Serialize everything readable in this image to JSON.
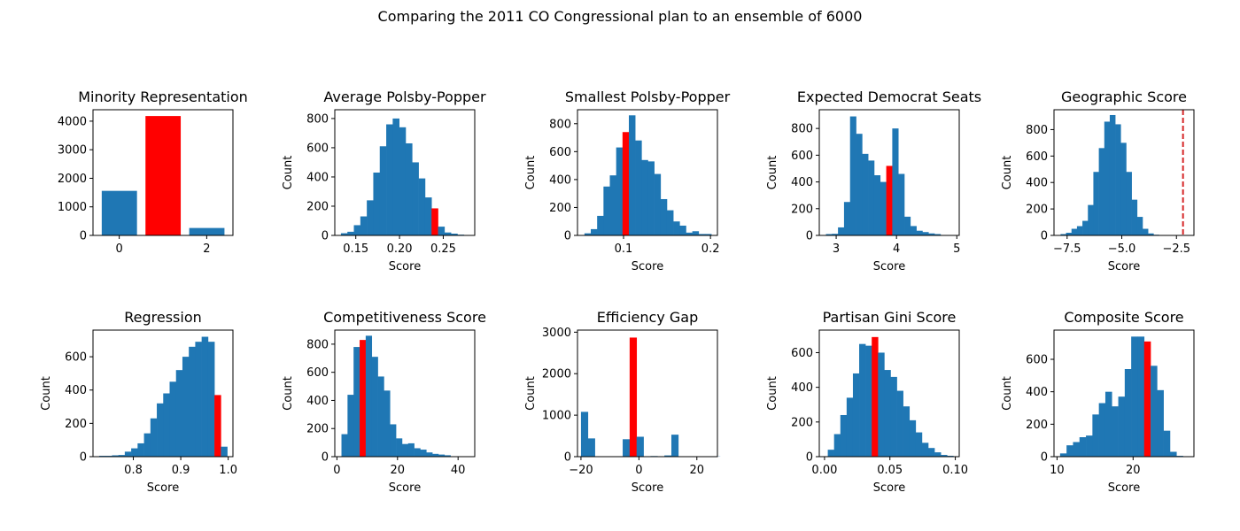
{
  "figure": {
    "title": "Comparing the 2011 CO Congressional plan to an ensemble of 6000"
  },
  "colors": {
    "ensemble": "#1f77b4",
    "plan": "#ff0000",
    "geo_line": "#d62728"
  },
  "chart_data": [
    {
      "type": "bar",
      "title": "Minority Representation",
      "xlabel": "",
      "ylabel": "",
      "xlim": [
        -0.6,
        2.6
      ],
      "ylim": [
        0,
        4400
      ],
      "xticks": [
        0,
        2
      ],
      "xtick_labels": [
        "0",
        "2"
      ],
      "yticks": [
        0,
        1000,
        2000,
        3000,
        4000
      ],
      "ytick_labels": [
        "0",
        "1000",
        "2000",
        "3000",
        "4000"
      ],
      "categories": [
        0,
        1,
        2
      ],
      "values": [
        1560,
        4180,
        260
      ],
      "highlight_index": 1
    },
    {
      "type": "bar",
      "title": "Average Polsby-Popper",
      "xlabel": "Score",
      "ylabel": "Count",
      "xlim": [
        0.126,
        0.286
      ],
      "ylim": [
        0,
        860
      ],
      "xticks": [
        0.15,
        0.2,
        0.25
      ],
      "xtick_labels": [
        "0.15",
        "0.20",
        "0.25"
      ],
      "yticks": [
        0,
        200,
        400,
        600,
        800
      ],
      "ytick_labels": [
        "0",
        "200",
        "400",
        "600",
        "800"
      ],
      "bin_start": 0.133,
      "bin_width": 0.0074,
      "values": [
        15,
        25,
        70,
        130,
        240,
        430,
        610,
        760,
        800,
        740,
        630,
        500,
        390,
        260,
        185,
        60,
        20,
        12,
        5
      ],
      "highlight_index": 14
    },
    {
      "type": "bar",
      "title": "Smallest Polsby-Popper",
      "xlabel": "Score",
      "ylabel": "Count",
      "xlim": [
        0.047,
        0.208
      ],
      "ylim": [
        0,
        900
      ],
      "xticks": [
        0.1,
        0.2
      ],
      "xtick_labels": [
        "0.1",
        "0.2"
      ],
      "yticks": [
        0,
        200,
        400,
        600,
        800
      ],
      "ytick_labels": [
        "0",
        "200",
        "400",
        "600",
        "800"
      ],
      "bin_start": 0.055,
      "bin_width": 0.0073,
      "values": [
        15,
        45,
        140,
        350,
        430,
        630,
        740,
        860,
        680,
        540,
        530,
        440,
        260,
        180,
        100,
        70,
        20,
        30,
        10,
        10
      ],
      "highlight_index": 6
    },
    {
      "type": "bar",
      "title": "Expected Democrat Seats",
      "xlabel": "Score",
      "ylabel": "Count",
      "xlim": [
        2.72,
        5.04
      ],
      "ylim": [
        0,
        940
      ],
      "xticks": [
        3,
        4,
        5
      ],
      "xtick_labels": [
        "3",
        "4",
        "5"
      ],
      "yticks": [
        0,
        200,
        400,
        600,
        800
      ],
      "ytick_labels": [
        "0",
        "200",
        "400",
        "600",
        "800"
      ],
      "bin_start": 2.83,
      "bin_width": 0.1,
      "values": [
        10,
        12,
        60,
        250,
        890,
        760,
        610,
        560,
        450,
        400,
        520,
        800,
        460,
        140,
        70,
        35,
        25,
        15,
        10
      ],
      "highlight_index": 10
    },
    {
      "type": "bar",
      "title": "Geographic Score",
      "xlabel": "Score",
      "ylabel": "Count",
      "xlim": [
        -8.1,
        -1.7
      ],
      "ylim": [
        0,
        950
      ],
      "xticks": [
        -7.5,
        -5,
        -2.5
      ],
      "xtick_labels": [
        "−7.5",
        "−5.0",
        "−2.5"
      ],
      "yticks": [
        0,
        200,
        400,
        600,
        800
      ],
      "ytick_labels": [
        "0",
        "200",
        "400",
        "600",
        "800"
      ],
      "bin_start": -7.8,
      "bin_width": 0.25,
      "values": [
        10,
        20,
        50,
        70,
        110,
        230,
        480,
        660,
        860,
        910,
        840,
        700,
        480,
        270,
        140,
        50,
        15,
        5
      ],
      "highlight_index": -1,
      "plan_line": -2.2
    },
    {
      "type": "bar",
      "title": "Regression",
      "xlabel": "Score",
      "ylabel": "Count",
      "xlim": [
        0.715,
        1.01
      ],
      "ylim": [
        0,
        760
      ],
      "xticks": [
        0.8,
        0.9,
        1.0
      ],
      "xtick_labels": [
        "0.8",
        "0.9",
        "1.0"
      ],
      "yticks": [
        0,
        200,
        400,
        600
      ],
      "ytick_labels": [
        "0",
        "200",
        "400",
        "600"
      ],
      "bin_start": 0.728,
      "bin_width": 0.0135,
      "values": [
        5,
        5,
        8,
        10,
        30,
        50,
        80,
        140,
        230,
        320,
        380,
        450,
        520,
        600,
        660,
        690,
        720,
        690,
        370,
        60
      ],
      "highlight_index": 18
    },
    {
      "type": "bar",
      "title": "Competitiveness Score",
      "xlabel": "Score",
      "ylabel": "Count",
      "xlim": [
        -0.7,
        45.5
      ],
      "ylim": [
        0,
        900
      ],
      "xticks": [
        0,
        20,
        40
      ],
      "xtick_labels": [
        "0",
        "20",
        "40"
      ],
      "yticks": [
        0,
        200,
        400,
        600,
        800
      ],
      "ytick_labels": [
        "0",
        "200",
        "400",
        "600",
        "800"
      ],
      "bin_start": 1.5,
      "bin_width": 2.0,
      "values": [
        160,
        440,
        780,
        830,
        860,
        710,
        570,
        470,
        230,
        130,
        90,
        95,
        60,
        50,
        30,
        20,
        15,
        10
      ],
      "highlight_index": 3
    },
    {
      "type": "bar",
      "title": "Efficiency Gap",
      "xlabel": "Score",
      "ylabel": "Count",
      "xlim": [
        -21.2,
        27.1
      ],
      "ylim": [
        0,
        3050
      ],
      "xticks": [
        -20,
        0,
        20
      ],
      "xtick_labels": [
        "−20",
        "0",
        "20"
      ],
      "yticks": [
        0,
        1000,
        2000,
        3000
      ],
      "ytick_labels": [
        "0",
        "1000",
        "2000",
        "3000"
      ],
      "bin_start": -20,
      "bin_width": 2.4,
      "values": [
        1080,
        440,
        0,
        0,
        0,
        0,
        420,
        2870,
        480,
        0,
        15,
        5,
        30,
        530,
        0,
        0,
        0,
        0,
        0,
        5
      ],
      "highlight_index": 7
    },
    {
      "type": "bar",
      "title": "Partisan Gini Score",
      "xlabel": "Score",
      "ylabel": "Count",
      "xlim": [
        -0.004,
        0.103
      ],
      "ylim": [
        0,
        730
      ],
      "xticks": [
        0.0,
        0.05,
        0.1
      ],
      "xtick_labels": [
        "0.00",
        "0.05",
        "0.10"
      ],
      "yticks": [
        0,
        200,
        400,
        600
      ],
      "ytick_labels": [
        "0",
        "200",
        "400",
        "600"
      ],
      "bin_start": 0.0025,
      "bin_width": 0.0048,
      "values": [
        40,
        130,
        240,
        340,
        480,
        650,
        640,
        690,
        600,
        500,
        460,
        380,
        290,
        210,
        140,
        80,
        50,
        25,
        10,
        5
      ],
      "highlight_index": 7
    },
    {
      "type": "bar",
      "title": "Composite Score",
      "xlabel": "Score",
      "ylabel": "Count",
      "xlim": [
        9.6,
        28.0
      ],
      "ylim": [
        0,
        780
      ],
      "xticks": [
        10,
        20
      ],
      "xtick_labels": [
        "10",
        "20"
      ],
      "yticks": [
        0,
        200,
        400,
        600
      ],
      "ytick_labels": [
        "0",
        "200",
        "400",
        "600"
      ],
      "bin_start": 10.4,
      "bin_width": 0.85,
      "values": [
        20,
        70,
        90,
        120,
        130,
        260,
        330,
        400,
        310,
        370,
        540,
        740,
        740,
        710,
        560,
        410,
        160,
        30,
        5
      ],
      "highlight_index": 13
    }
  ]
}
